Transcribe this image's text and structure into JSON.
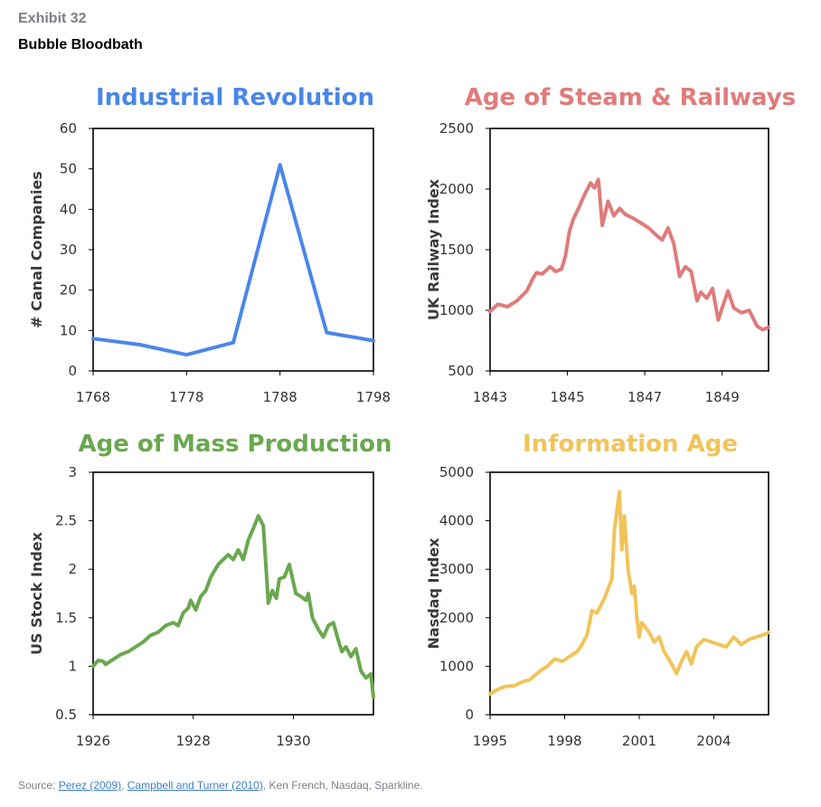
{
  "header": {
    "exhibit": "Exhibit 32",
    "title": "Bubble Bloodbath"
  },
  "source": {
    "prefix": "Source: ",
    "link1": "Perez (2009)",
    "sep": ", ",
    "link2": "Campbell and Turner (2010)",
    "rest": ", Ken French, Nasdaq, Sparkline."
  },
  "chart_data": [
    {
      "type": "line",
      "title": "Industrial Revolution",
      "color": "#4a86e8",
      "ylabel": "# Canal Companies",
      "xlim": [
        1768,
        1798
      ],
      "ylim": [
        0,
        60
      ],
      "xticks": [
        1768,
        1778,
        1788,
        1798
      ],
      "xtick_labels": [
        "1768",
        "1778",
        "1788",
        "1798"
      ],
      "yticks": [
        0,
        10,
        20,
        30,
        40,
        50,
        60
      ],
      "ytick_labels": [
        "0",
        "10",
        "20",
        "30",
        "40",
        "50",
        "60"
      ],
      "series": [
        {
          "name": "Canal Companies",
          "x": [
            1768,
            1773,
            1778,
            1783,
            1788,
            1793,
            1798
          ],
          "values": [
            8,
            6.5,
            4,
            7,
            51,
            9.5,
            7.5
          ]
        }
      ]
    },
    {
      "type": "line",
      "title": "Age of Steam & Railways",
      "color": "#e07b7b",
      "ylabel": "UK Railway Index",
      "xlim": [
        1843,
        1850.2
      ],
      "ylim": [
        500,
        2500
      ],
      "xticks": [
        1843,
        1845,
        1847,
        1849
      ],
      "xtick_labels": [
        "1843",
        "1845",
        "1847",
        "1849"
      ],
      "yticks": [
        500,
        1000,
        1500,
        2000,
        2500
      ],
      "ytick_labels": [
        "500",
        "1000",
        "1500",
        "2000",
        "2500"
      ],
      "series": [
        {
          "name": "UK Railway Index",
          "x": [
            1843,
            1843.2,
            1843.45,
            1843.7,
            1843.95,
            1844.1,
            1844.2,
            1844.35,
            1844.55,
            1844.7,
            1844.85,
            1844.95,
            1845.05,
            1845.15,
            1845.3,
            1845.45,
            1845.6,
            1845.7,
            1845.8,
            1845.9,
            1846.05,
            1846.2,
            1846.35,
            1846.5,
            1846.7,
            1846.9,
            1847.1,
            1847.3,
            1847.45,
            1847.6,
            1847.75,
            1847.9,
            1848.05,
            1848.2,
            1848.35,
            1848.45,
            1848.6,
            1848.75,
            1848.9,
            1849.0,
            1849.15,
            1849.3,
            1849.5,
            1849.7,
            1849.9,
            1850.05,
            1850.2
          ],
          "values": [
            990,
            1050,
            1030,
            1080,
            1160,
            1260,
            1310,
            1300,
            1360,
            1320,
            1340,
            1450,
            1650,
            1750,
            1850,
            1960,
            2050,
            2010,
            2080,
            1700,
            1900,
            1780,
            1840,
            1790,
            1760,
            1720,
            1680,
            1620,
            1580,
            1680,
            1550,
            1280,
            1360,
            1320,
            1080,
            1150,
            1100,
            1180,
            920,
            1020,
            1160,
            1020,
            980,
            1000,
            870,
            840,
            860
          ]
        }
      ]
    },
    {
      "type": "line",
      "title": "Age of Mass Production",
      "color": "#6aa84f",
      "ylabel": "US Stock Index",
      "xlim": [
        1926,
        1931.6
      ],
      "ylim": [
        0.5,
        3
      ],
      "xticks": [
        1926,
        1928,
        1930
      ],
      "xtick_labels": [
        "1926",
        "1928",
        "1930"
      ],
      "yticks": [
        0.5,
        1,
        1.5,
        2,
        2.5,
        3
      ],
      "ytick_labels": [
        "0.5",
        "1",
        "1.5",
        "2",
        "2.5",
        "3"
      ],
      "series": [
        {
          "name": "US Stock Index",
          "x": [
            1926,
            1926.1,
            1926.2,
            1926.25,
            1926.4,
            1926.55,
            1926.7,
            1926.85,
            1927.0,
            1927.15,
            1927.3,
            1927.45,
            1927.6,
            1927.7,
            1927.8,
            1927.9,
            1927.95,
            1928.05,
            1928.15,
            1928.25,
            1928.35,
            1928.5,
            1928.6,
            1928.7,
            1928.8,
            1928.9,
            1929.0,
            1929.1,
            1929.2,
            1929.3,
            1929.4,
            1929.5,
            1929.58,
            1929.66,
            1929.72,
            1929.82,
            1929.92,
            1930.05,
            1930.15,
            1930.25,
            1930.3,
            1930.38,
            1930.5,
            1930.6,
            1930.7,
            1930.8,
            1930.88,
            1930.97,
            1931.05,
            1931.15,
            1931.25,
            1931.35,
            1931.45,
            1931.55,
            1931.6
          ],
          "values": [
            1.0,
            1.06,
            1.05,
            1.02,
            1.07,
            1.12,
            1.15,
            1.2,
            1.25,
            1.32,
            1.35,
            1.42,
            1.45,
            1.42,
            1.55,
            1.6,
            1.68,
            1.58,
            1.72,
            1.78,
            1.92,
            2.05,
            2.1,
            2.15,
            2.1,
            2.2,
            2.1,
            2.3,
            2.42,
            2.55,
            2.45,
            1.65,
            1.78,
            1.7,
            1.9,
            1.92,
            2.05,
            1.75,
            1.72,
            1.68,
            1.75,
            1.5,
            1.38,
            1.3,
            1.42,
            1.45,
            1.3,
            1.15,
            1.2,
            1.1,
            1.18,
            0.95,
            0.88,
            0.92,
            0.68
          ]
        }
      ]
    },
    {
      "type": "line",
      "title": "Information Age",
      "color": "#f1c45a",
      "ylabel": "Nasdaq Index",
      "xlim": [
        1995,
        2006.2
      ],
      "ylim": [
        0,
        5000
      ],
      "xticks": [
        1995,
        1998,
        2001,
        2004
      ],
      "xtick_labels": [
        "1995",
        "1998",
        "2001",
        "2004"
      ],
      "yticks": [
        0,
        1000,
        2000,
        3000,
        4000,
        5000
      ],
      "ytick_labels": [
        "0",
        "1000",
        "2000",
        "3000",
        "4000",
        "5000"
      ],
      "series": [
        {
          "name": "Nasdaq Index",
          "x": [
            1995,
            1995.3,
            1995.6,
            1996.0,
            1996.3,
            1996.6,
            1997.0,
            1997.3,
            1997.6,
            1997.9,
            1998.2,
            1998.5,
            1998.7,
            1998.9,
            1999.1,
            1999.3,
            1999.6,
            1999.9,
            2000.0,
            2000.1,
            2000.2,
            2000.3,
            2000.4,
            2000.55,
            2000.7,
            2000.8,
            2000.9,
            2001.0,
            2001.1,
            2001.25,
            2001.4,
            2001.6,
            2001.8,
            2002.0,
            2002.3,
            2002.5,
            2002.7,
            2002.9,
            2003.1,
            2003.3,
            2003.6,
            2003.9,
            2004.2,
            2004.5,
            2004.8,
            2005.1,
            2005.4,
            2005.7,
            2006.0,
            2006.2
          ],
          "values": [
            430,
            520,
            580,
            600,
            680,
            720,
            900,
            1000,
            1150,
            1100,
            1200,
            1300,
            1450,
            1650,
            2150,
            2100,
            2400,
            2800,
            3800,
            4200,
            4600,
            3400,
            4100,
            3000,
            2500,
            2650,
            2000,
            1600,
            1900,
            1800,
            1700,
            1500,
            1600,
            1300,
            1050,
            850,
            1100,
            1300,
            1050,
            1400,
            1550,
            1500,
            1450,
            1400,
            1600,
            1450,
            1550,
            1600,
            1650,
            1700
          ]
        }
      ]
    }
  ]
}
